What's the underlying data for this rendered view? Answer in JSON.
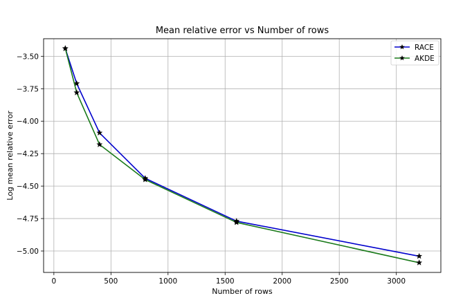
{
  "chart_data": {
    "type": "line",
    "title": "Mean relative error vs Number of rows",
    "xlabel": "Number of rows",
    "ylabel": "Log mean relative error",
    "xlim": [
      -90,
      3390
    ],
    "ylim": [
      -5.165,
      -3.365
    ],
    "xticks": [
      0,
      500,
      1000,
      1500,
      2000,
      2500,
      3000
    ],
    "xtick_labels": [
      "0",
      "500",
      "1000",
      "1500",
      "2000",
      "2500",
      "3000"
    ],
    "yticks": [
      -3.5,
      -3.75,
      -4.0,
      -4.25,
      -4.5,
      -4.75,
      -5.0
    ],
    "ytick_labels": [
      "−3.50",
      "−3.75",
      "−4.00",
      "−4.25",
      "−4.50",
      "−4.75",
      "−5.00"
    ],
    "grid": true,
    "legend_position": "top-right",
    "marker": "star",
    "x": [
      100,
      200,
      400,
      800,
      1600,
      3200
    ],
    "series": [
      {
        "name": "RACE",
        "color": "#0000cc",
        "values": [
          -3.44,
          -3.71,
          -4.09,
          -4.44,
          -4.77,
          -5.04
        ]
      },
      {
        "name": "AKDE",
        "color": "#1a7a1a",
        "values": [
          -3.44,
          -3.78,
          -4.18,
          -4.45,
          -4.78,
          -5.09
        ]
      }
    ]
  }
}
